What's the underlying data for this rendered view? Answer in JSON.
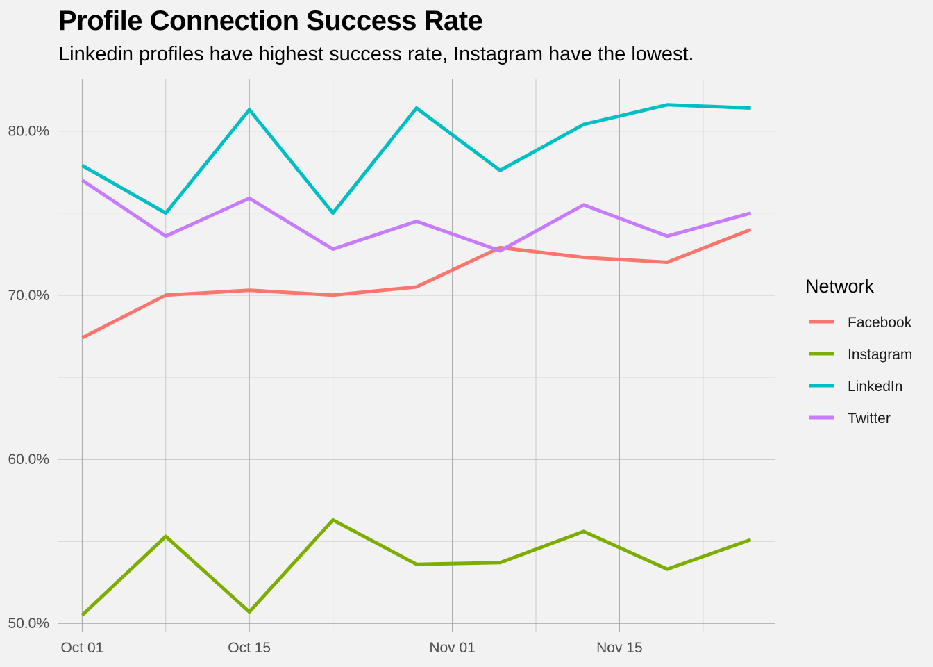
{
  "chart_data": {
    "type": "line",
    "title": "Profile Connection Success Rate",
    "subtitle": "Linkedin profiles have highest success rate, Instagram have the lowest.",
    "xlabel": "",
    "ylabel": "",
    "x": [
      "2020-10-01",
      "2020-10-08",
      "2020-10-15",
      "2020-10-22",
      "2020-10-29",
      "2020-11-05",
      "2020-11-12",
      "2020-11-19",
      "2020-11-26"
    ],
    "x_ticks": [
      {
        "date": "2020-10-01",
        "label": "Oct 01"
      },
      {
        "date": "2020-10-15",
        "label": "Oct 15"
      },
      {
        "date": "2020-11-01",
        "label": "Nov 01"
      },
      {
        "date": "2020-11-15",
        "label": "Nov 15"
      }
    ],
    "x_minor_ticks": [
      "2020-10-08",
      "2020-10-22",
      "2020-11-08",
      "2020-11-22"
    ],
    "xlim": [
      "2020-09-29",
      "2020-11-28"
    ],
    "ylim": [
      49.5,
      83.2
    ],
    "y_ticks": [
      {
        "value": 50,
        "label": "50.0%"
      },
      {
        "value": 60,
        "label": "60.0%"
      },
      {
        "value": 70,
        "label": "70.0%"
      },
      {
        "value": 80,
        "label": "80.0%"
      }
    ],
    "y_minor_ticks": [
      55,
      65,
      75
    ],
    "grid": true,
    "legend": {
      "title": "Network",
      "position": "right"
    },
    "series": [
      {
        "name": "Facebook",
        "color": "#f8766d",
        "values": [
          67.4,
          70.0,
          70.3,
          70.0,
          70.5,
          72.9,
          72.3,
          72.0,
          74.0
        ]
      },
      {
        "name": "Instagram",
        "color": "#7cae00",
        "values": [
          50.5,
          55.3,
          50.7,
          56.3,
          53.6,
          53.7,
          55.6,
          53.3,
          55.1
        ]
      },
      {
        "name": "LinkedIn",
        "color": "#00bfc4",
        "values": [
          77.9,
          75.0,
          81.3,
          75.0,
          81.4,
          77.6,
          80.4,
          81.6,
          81.4
        ]
      },
      {
        "name": "Twitter",
        "color": "#c77cff",
        "values": [
          77.0,
          73.6,
          75.9,
          72.8,
          74.5,
          72.7,
          75.5,
          73.6,
          75.0
        ]
      }
    ]
  }
}
